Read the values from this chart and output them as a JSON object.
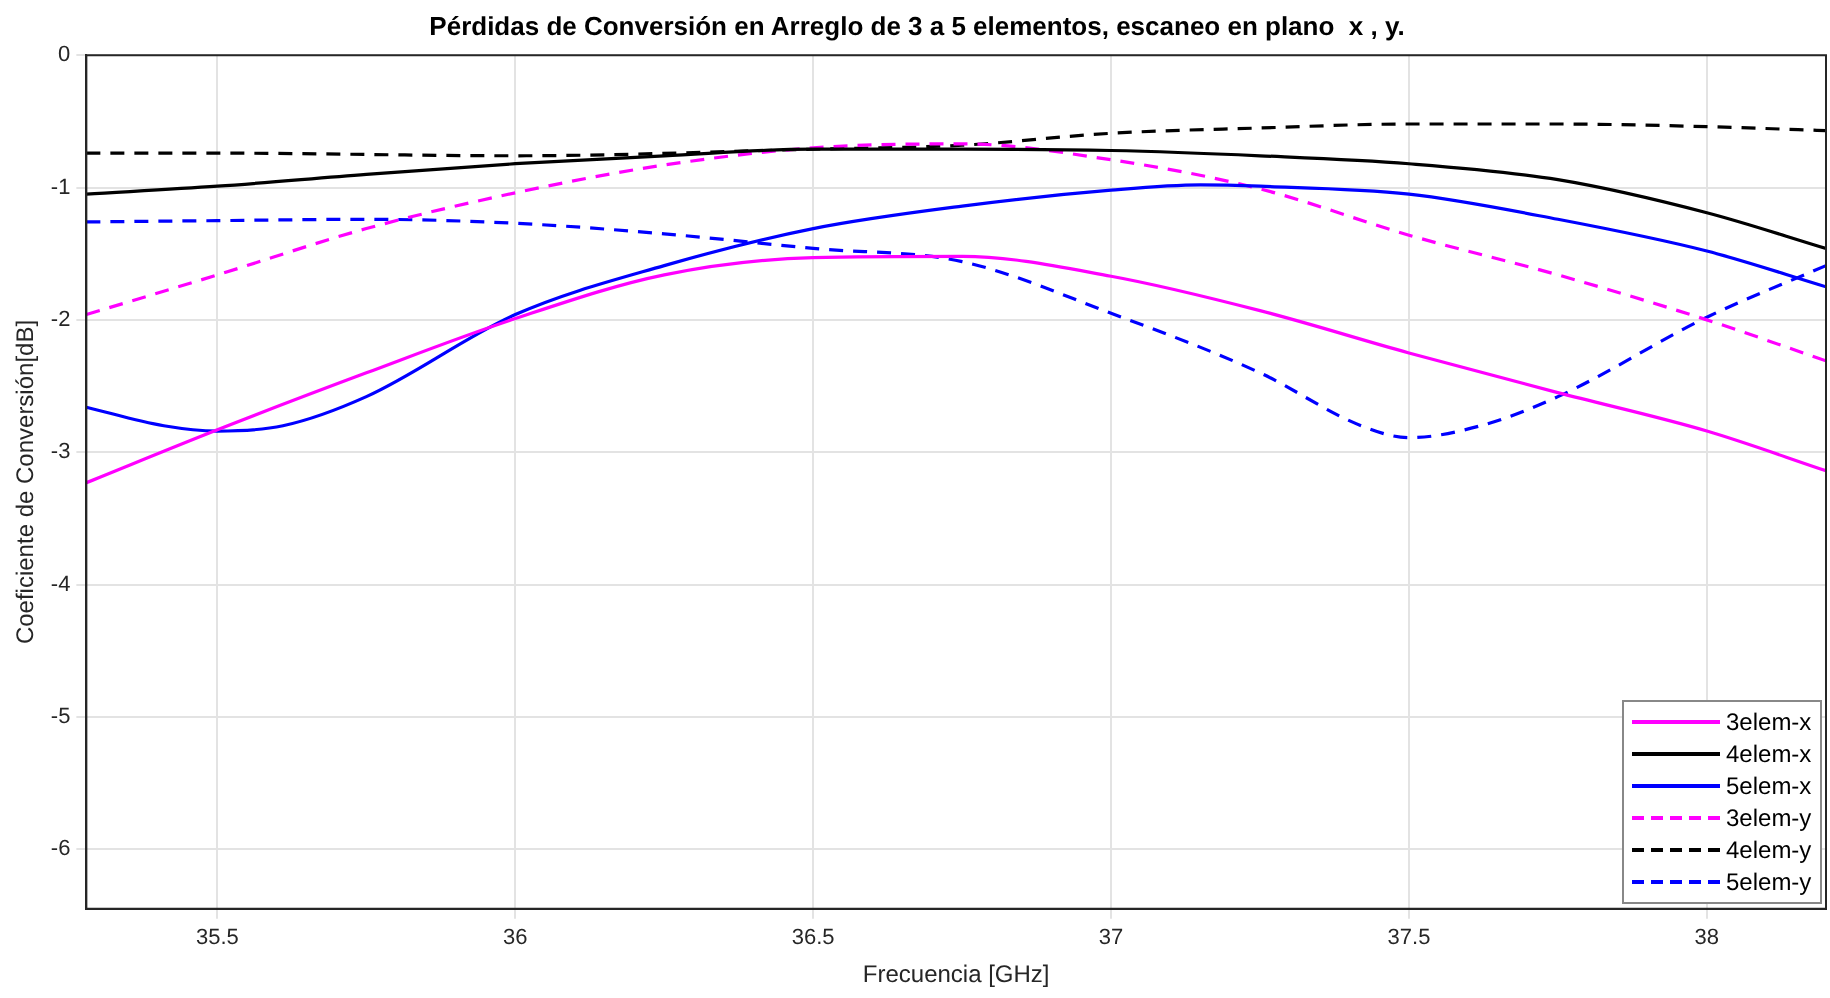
{
  "chart_data": {
    "type": "line",
    "title": "Pérdidas de Conversión en Arreglo de 3 a 5 elementos, escaneo en plano  x , y.",
    "xlabel": "Frecuencia [GHz]",
    "ylabel": "Coeficiente de Conversión[dB]",
    "xlim": [
      35.28,
      38.2
    ],
    "xticks": [
      35.5,
      36,
      36.5,
      37,
      37.5,
      38
    ],
    "ylim": [
      -6.45,
      0
    ],
    "yticks": [
      -6,
      -5,
      -4,
      -3,
      -2,
      -1,
      0
    ],
    "grid": true,
    "legend": "bottom right",
    "marker": "none",
    "series": [
      {
        "name": "3elem-x",
        "color": "#ff00ff",
        "line_style": "solid",
        "x": [
          35.28,
          35.5,
          35.75,
          36,
          36.25,
          36.5,
          36.75,
          37,
          37.25,
          37.5,
          37.75,
          38,
          38.2
        ],
        "values": [
          -3.23,
          -2.83,
          -2.4,
          -1.99,
          -1.66,
          -1.53,
          -1.52,
          -1.67,
          -1.93,
          -2.25,
          -2.55,
          -2.84,
          -3.14
        ]
      },
      {
        "name": "4elem-x",
        "color": "#000000",
        "line_style": "solid",
        "x": [
          35.28,
          35.5,
          35.75,
          36,
          36.25,
          36.5,
          36.75,
          37,
          37.25,
          37.5,
          37.75,
          38,
          38.2
        ],
        "values": [
          -1.05,
          -0.99,
          -0.9,
          -0.82,
          -0.76,
          -0.71,
          -0.71,
          -0.72,
          -0.76,
          -0.82,
          -0.94,
          -1.19,
          -1.46
        ]
      },
      {
        "name": "5elem-x",
        "color": "#0000ff",
        "line_style": "solid",
        "x": [
          35.28,
          35.41,
          35.5,
          35.61,
          35.75,
          36,
          36.25,
          36.5,
          36.75,
          37,
          37.15,
          37.25,
          37.5,
          37.75,
          38,
          38.2
        ],
        "values": [
          -2.66,
          -2.8,
          -2.84,
          -2.8,
          -2.58,
          -1.96,
          -1.59,
          -1.31,
          -1.14,
          -1.02,
          -0.98,
          -0.99,
          -1.05,
          -1.24,
          -1.48,
          -1.75
        ]
      },
      {
        "name": "3elem-y",
        "color": "#ff00ff",
        "line_style": "dashed",
        "x": [
          35.28,
          35.5,
          35.75,
          36,
          36.25,
          36.5,
          36.75,
          37,
          37.25,
          37.5,
          37.75,
          38,
          38.2
        ],
        "values": [
          -1.96,
          -1.66,
          -1.31,
          -1.04,
          -0.83,
          -0.7,
          -0.67,
          -0.79,
          -1.01,
          -1.36,
          -1.66,
          -2.0,
          -2.31
        ]
      },
      {
        "name": "4elem-y",
        "color": "#000000",
        "line_style": "dashed",
        "x": [
          35.28,
          35.5,
          36,
          36.5,
          36.75,
          37,
          37.25,
          37.5,
          37.75,
          38,
          38.2
        ],
        "values": [
          -0.74,
          -0.74,
          -0.76,
          -0.71,
          -0.68,
          -0.59,
          -0.55,
          -0.52,
          -0.52,
          -0.54,
          -0.57
        ]
      },
      {
        "name": "5elem-y",
        "color": "#0000ff",
        "line_style": "dashed",
        "x": [
          35.28,
          35.5,
          35.75,
          36,
          36.25,
          36.5,
          36.75,
          37,
          37.25,
          37.42,
          37.5,
          37.62,
          37.75,
          38,
          38.2
        ],
        "values": [
          -1.26,
          -1.25,
          -1.24,
          -1.27,
          -1.35,
          -1.46,
          -1.56,
          -1.95,
          -2.4,
          -2.8,
          -2.89,
          -2.8,
          -2.58,
          -1.98,
          -1.59
        ]
      }
    ]
  }
}
